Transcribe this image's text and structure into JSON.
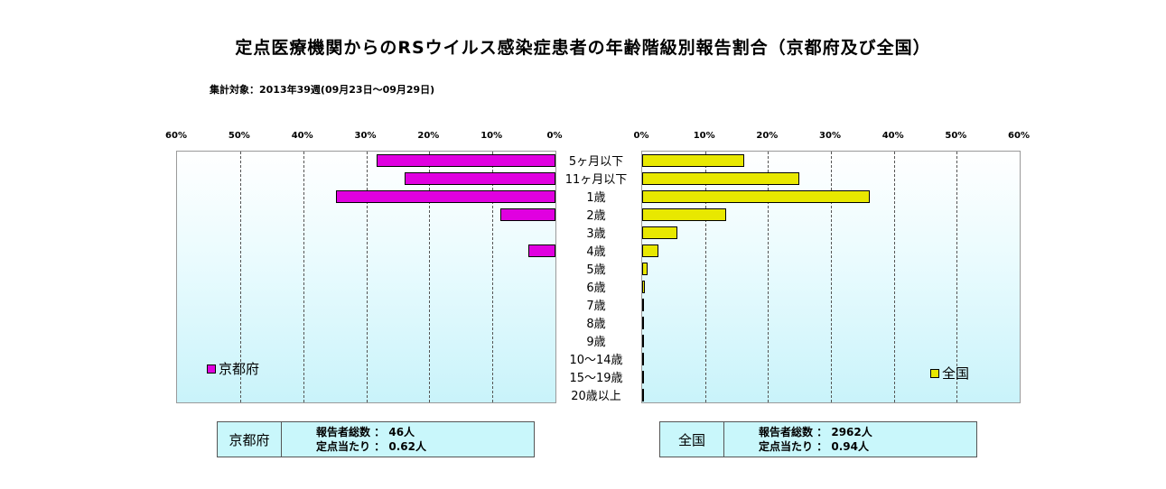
{
  "title": "定点医療機関からのRSウイルス感染症患者の年齢階級別報告割合（京都府及び全国）",
  "subtitle": "集計対象：2013年39週(09月23日～09月29日)",
  "chart_data": {
    "type": "bar",
    "orientation": "horizontal-butterfly",
    "categories": [
      "5ヶ月以下",
      "11ヶ月以下",
      "1歳",
      "2歳",
      "3歳",
      "4歳",
      "5歳",
      "6歳",
      "7歳",
      "8歳",
      "9歳",
      "10～14歳",
      "15～19歳",
      "20歳以上"
    ],
    "left_axis_ticks": [
      "60%",
      "50%",
      "40%",
      "30%",
      "20%",
      "10%",
      "0%"
    ],
    "right_axis_ticks": [
      "0%",
      "10%",
      "20%",
      "30%",
      "40%",
      "50%",
      "60%"
    ],
    "xlim": [
      0,
      60
    ],
    "grid": true,
    "series": [
      {
        "name": "京都府",
        "side": "left",
        "color": "#e000e0",
        "values": [
          28.3,
          23.9,
          34.8,
          8.7,
          0,
          4.3,
          0,
          0,
          0,
          0,
          0,
          0,
          0,
          0
        ]
      },
      {
        "name": "全国",
        "side": "right",
        "color": "#e8e800",
        "values": [
          16.2,
          25.0,
          36.2,
          13.3,
          5.6,
          2.6,
          0.9,
          0.5,
          0.3,
          0.2,
          0.1,
          0.1,
          0.05,
          0.1
        ]
      }
    ]
  },
  "legend": {
    "kyoto": "京都府",
    "national": "全国"
  },
  "info": {
    "kyoto": {
      "name": "京都府",
      "line1": "報告者総数 ： 46人",
      "line2": "定点当たり ： 0.62人"
    },
    "national": {
      "name": "全国",
      "line1": "報告者総数 ： 2962人",
      "line2": "定点当たり ： 0.94人"
    }
  }
}
